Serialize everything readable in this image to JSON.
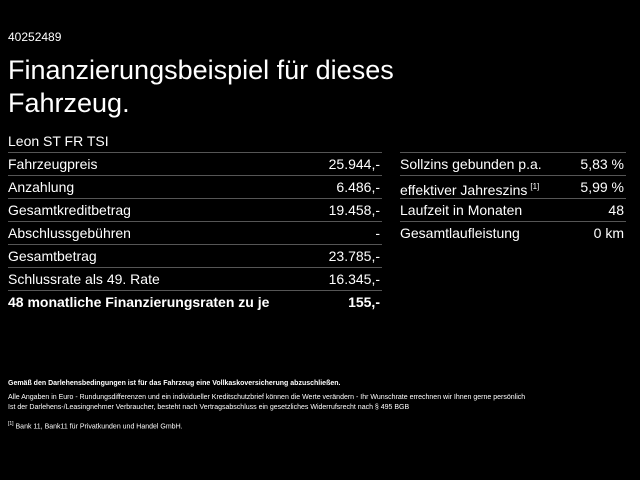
{
  "id": "40252489",
  "title": "Finanzierungsbeispiel für dieses Fahrzeug.",
  "model": "Leon ST FR TSI",
  "left_table": {
    "rows": [
      [
        "Fahrzeugpreis",
        "25.944,-"
      ],
      [
        "Anzahlung",
        "6.486,-"
      ],
      [
        "Gesamtkreditbetrag",
        "19.458,-"
      ],
      [
        "Abschlussgebühren",
        "-"
      ],
      [
        "Gesamtbetrag",
        "23.785,-"
      ],
      [
        "Schlussrate als 49. Rate",
        "16.345,-"
      ],
      [
        "48 monatliche Finanzierungsraten zu je",
        "155,-"
      ]
    ]
  },
  "right_table": {
    "rows": [
      {
        "label": "Sollzins gebunden p.a.",
        "value": "5,83 %"
      },
      {
        "label": "effektiver Jahreszins",
        "footnote": "[1]",
        "value": "5,99 %"
      },
      {
        "label": "Laufzeit in Monaten",
        "value": "48"
      },
      {
        "label": "Gesamtlaufleistung",
        "value": "0 km"
      }
    ]
  },
  "footer": {
    "insurance": "Gemäß den Darlehensbedingungen ist für das Fahrzeug eine Vollkaskoversicherung abzuschließen.",
    "disclaimer": [
      "Alle Angaben in Euro - Rundungsdifferenzen und ein individueller Kreditschutzbrief können die Werte verändern - Ihr Wunschrate errechnen wir Ihnen gerne persönlich",
      "Ist der Darlehens-/Leasingnehmer Verbraucher, besteht nach Vertragsabschluss ein gesetzliches Widerrufsrecht nach § 495 BGB"
    ],
    "footnote_ref": "[1]",
    "footnote": "Bank 11, Bank11 für Privatkunden und Handel GmbH."
  }
}
